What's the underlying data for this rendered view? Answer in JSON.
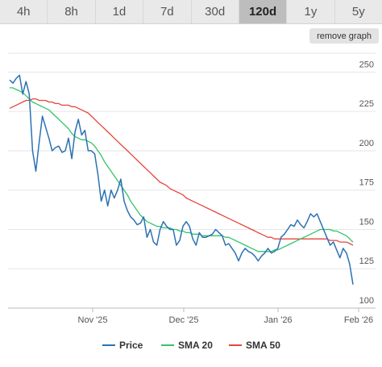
{
  "tabs": [
    {
      "label": "4h",
      "active": false
    },
    {
      "label": "8h",
      "active": false
    },
    {
      "label": "1d",
      "active": false
    },
    {
      "label": "7d",
      "active": false
    },
    {
      "label": "30d",
      "active": false
    },
    {
      "label": "120d",
      "active": true
    },
    {
      "label": "1y",
      "active": false
    },
    {
      "label": "5y",
      "active": false
    }
  ],
  "remove_graph_label": "remove graph",
  "chart_data": {
    "type": "line",
    "title": "",
    "xlabel": "",
    "ylabel": "",
    "x_ticks": [
      "Nov '25",
      "Dec '25",
      "Jan '26",
      "Feb '26"
    ],
    "y_ticks": [
      100,
      125,
      150,
      175,
      200,
      225,
      250
    ],
    "ylim": [
      100,
      262
    ],
    "grid": "horizontal",
    "legend_position": "bottom-center",
    "series": [
      {
        "name": "Price",
        "color": "#2b72b3",
        "values": [
          245,
          243,
          246,
          248,
          236,
          244,
          236,
          200,
          187,
          205,
          222,
          215,
          208,
          200,
          202,
          203,
          199,
          200,
          208,
          195,
          212,
          220,
          210,
          213,
          200,
          200,
          198,
          185,
          168,
          175,
          165,
          175,
          170,
          175,
          182,
          168,
          162,
          158,
          156,
          153,
          154,
          158,
          145,
          150,
          142,
          140,
          150,
          155,
          152,
          150,
          150,
          140,
          143,
          152,
          155,
          152,
          144,
          140,
          148,
          145,
          145,
          146,
          147,
          150,
          148,
          146,
          140,
          141,
          138,
          135,
          130,
          135,
          138,
          136,
          135,
          133,
          130,
          133,
          135,
          138,
          135,
          136,
          138,
          145,
          147,
          150,
          153,
          152,
          156,
          153,
          151,
          155,
          160,
          158,
          160,
          155,
          150,
          145,
          140,
          142,
          137,
          132,
          138,
          135,
          128,
          115
        ]
      },
      {
        "name": "SMA 20",
        "color": "#33c46a",
        "values": [
          240,
          240,
          239,
          238,
          237,
          235,
          233,
          231,
          230,
          229,
          228,
          227,
          226,
          224,
          222,
          220,
          218,
          216,
          214,
          211,
          209,
          208,
          207,
          207,
          206,
          205,
          203,
          200,
          197,
          193,
          190,
          187,
          184,
          181,
          178,
          175,
          172,
          168,
          165,
          162,
          159,
          157,
          155,
          154,
          153,
          152,
          152,
          151,
          151,
          151,
          150,
          150,
          149,
          149,
          148,
          148,
          147,
          147,
          147,
          146,
          146,
          146,
          146,
          146,
          146,
          146,
          145,
          145,
          144,
          143,
          142,
          141,
          140,
          139,
          138,
          137,
          136,
          136,
          136,
          136,
          136,
          137,
          137,
          138,
          139,
          140,
          141,
          142,
          143,
          144,
          145,
          146,
          147,
          148,
          149,
          150,
          150,
          150,
          150,
          149,
          149,
          148,
          147,
          146,
          144,
          142
        ]
      },
      {
        "name": "SMA 50",
        "color": "#e5463c",
        "values": [
          227,
          228,
          229,
          230,
          231,
          232,
          232,
          233,
          233,
          232,
          232,
          232,
          231,
          231,
          230,
          230,
          229,
          229,
          229,
          228,
          228,
          227,
          226,
          225,
          224,
          222,
          220,
          218,
          216,
          214,
          212,
          210,
          208,
          206,
          204,
          202,
          200,
          198,
          196,
          194,
          192,
          190,
          188,
          186,
          184,
          182,
          180,
          179,
          178,
          176,
          175,
          174,
          173,
          172,
          170,
          169,
          168,
          167,
          166,
          165,
          164,
          163,
          162,
          161,
          160,
          159,
          158,
          157,
          156,
          155,
          154,
          153,
          152,
          151,
          150,
          149,
          148,
          147,
          146,
          145,
          145,
          144,
          144,
          144,
          144,
          144,
          144,
          144,
          144,
          144,
          144,
          144,
          144,
          144,
          144,
          144,
          144,
          144,
          143,
          143,
          143,
          142,
          142,
          142,
          141,
          140
        ]
      }
    ]
  }
}
